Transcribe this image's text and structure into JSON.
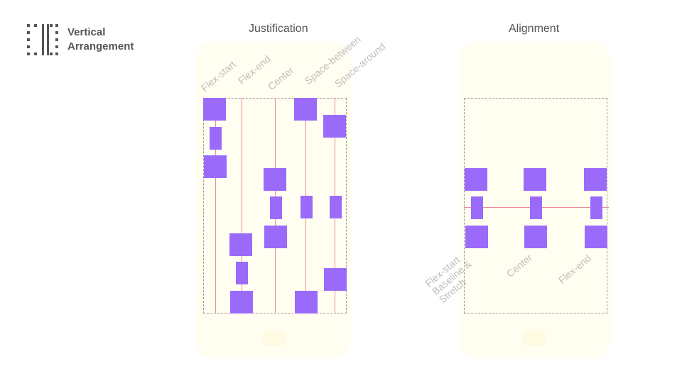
{
  "brand": {
    "line1": "Vertical",
    "line2": "Arrangement",
    "icon": "vertical-arrangement-icon"
  },
  "justification": {
    "title": "Justification",
    "labels": [
      "Flex-start",
      "Flex-end",
      "Center",
      "Space-between",
      "Space-around"
    ]
  },
  "alignment": {
    "title": "Alignment",
    "labels": {
      "flex_start": "Flex-start",
      "baseline": "Baseline &",
      "stretch": "Stretch",
      "center": "Center",
      "flex_end": "Flex-end"
    }
  },
  "colors": {
    "box": "#9a6bfb",
    "guide": "#f08a94",
    "label": "#bdbdbd",
    "title": "#555555"
  }
}
